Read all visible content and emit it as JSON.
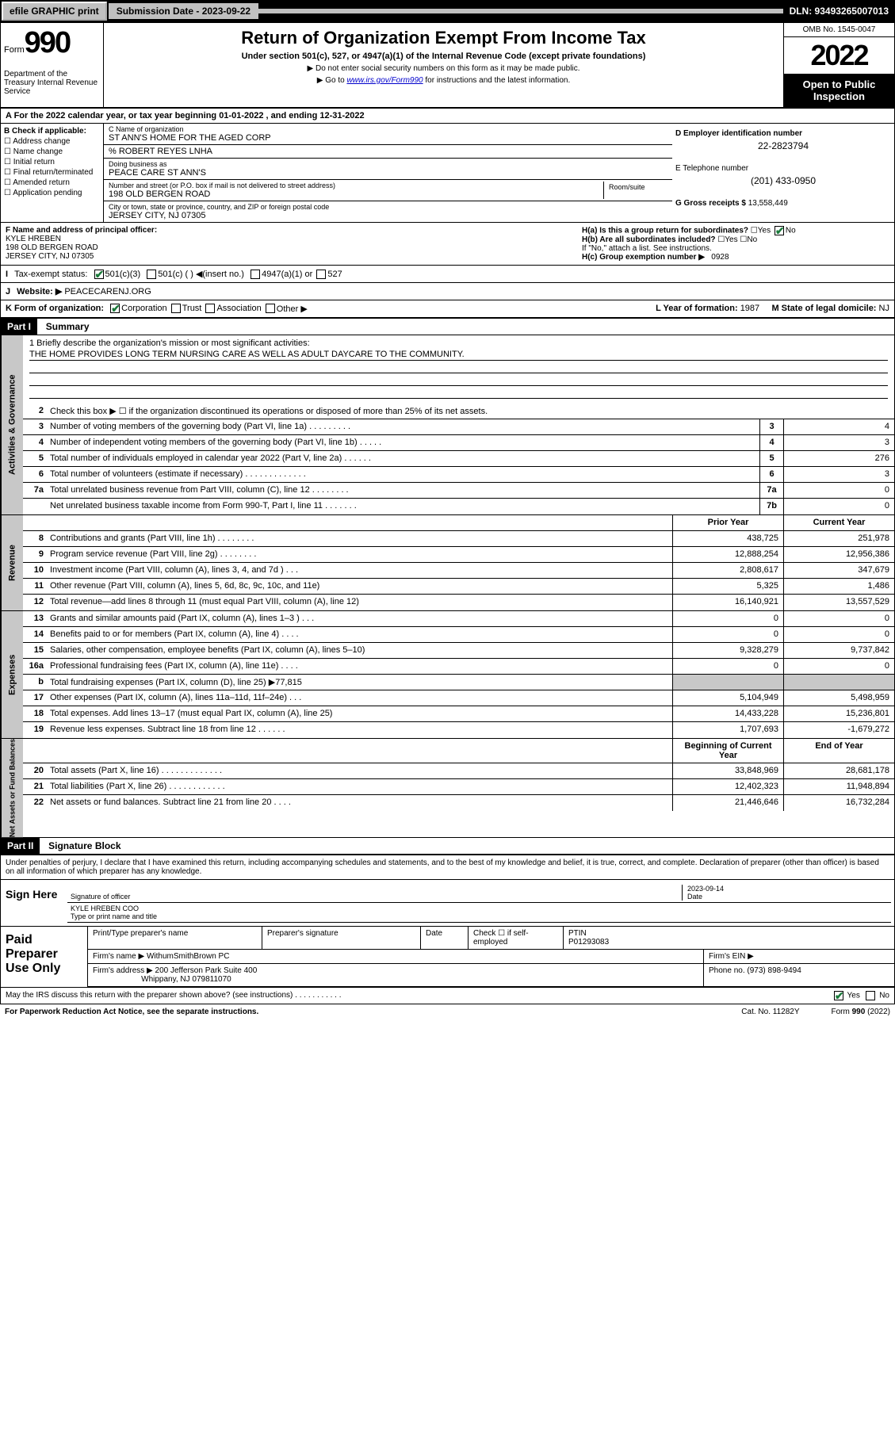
{
  "topbar": {
    "efile": "efile GRAPHIC print",
    "subdate_lbl": "Submission Date - 2023-09-22",
    "dln": "DLN: 93493265007013"
  },
  "header": {
    "form_word": "Form",
    "form_num": "990",
    "dept": "Department of the Treasury Internal Revenue Service",
    "title": "Return of Organization Exempt From Income Tax",
    "subtitle": "Under section 501(c), 527, or 4947(a)(1) of the Internal Revenue Code (except private foundations)",
    "note1": "▶ Do not enter social security numbers on this form as it may be made public.",
    "note2_pre": "▶ Go to ",
    "note2_link": "www.irs.gov/Form990",
    "note2_post": " for instructions and the latest information.",
    "omb": "OMB No. 1545-0047",
    "year": "2022",
    "otp": "Open to Public Inspection"
  },
  "rowA": "A For the 2022 calendar year, or tax year beginning 01-01-2022    , and ending 12-31-2022",
  "colB": {
    "lbl": "B Check if applicable:",
    "opts": [
      "Address change",
      "Name change",
      "Initial return",
      "Final return/terminated",
      "Amended return",
      "Application pending"
    ]
  },
  "colC": {
    "name_lbl": "C Name of organization",
    "name": "ST ANN'S HOME FOR THE AGED CORP",
    "care_lbl": "% ROBERT REYES LNHA",
    "dba_lbl": "Doing business as",
    "dba": "PEACE CARE ST ANN'S",
    "addr_lbl": "Number and street (or P.O. box if mail is not delivered to street address)",
    "room_lbl": "Room/suite",
    "addr": "198 OLD BERGEN ROAD",
    "city_lbl": "City or town, state or province, country, and ZIP or foreign postal code",
    "city": "JERSEY CITY, NJ  07305"
  },
  "colD": {
    "ein_lbl": "D Employer identification number",
    "ein": "22-2823794",
    "phone_lbl": "E Telephone number",
    "phone": "(201) 433-0950",
    "gross_lbl": "G Gross receipts $",
    "gross": "13,558,449"
  },
  "rowF": {
    "lbl": "F Name and address of principal officer:",
    "name": "KYLE HREBEN",
    "addr1": "198 OLD BERGEN ROAD",
    "addr2": "JERSEY CITY, NJ  07305"
  },
  "rowH": {
    "ha": "H(a)  Is this a group return for subordinates?",
    "ha_ans": "No",
    "hb": "H(b)  Are all subordinates included?",
    "hb_note": "If \"No,\" attach a list. See instructions.",
    "hc": "H(c)  Group exemption number ▶",
    "hc_val": "0928"
  },
  "rowI": {
    "lbl": "Tax-exempt status:",
    "opts": [
      "501(c)(3)",
      "501(c) (  ) ◀(insert no.)",
      "4947(a)(1) or",
      "527"
    ]
  },
  "rowJ": {
    "lbl": "Website: ▶",
    "val": "PEACECARENJ.ORG"
  },
  "rowK": {
    "lbl": "K Form of organization:",
    "opts": [
      "Corporation",
      "Trust",
      "Association",
      "Other ▶"
    ],
    "l_lbl": "L Year of formation:",
    "l_val": "1987",
    "m_lbl": "M State of legal domicile:",
    "m_val": "NJ"
  },
  "part1": {
    "hdr": "Part I",
    "title": "Summary",
    "mission_lbl": "1   Briefly describe the organization's mission or most significant activities:",
    "mission": "THE HOME PROVIDES LONG TERM NURSING CARE AS WELL AS ADULT DAYCARE TO THE COMMUNITY.",
    "line2": "Check this box ▶ ☐  if the organization discontinued its operations or disposed of more than 25% of its net assets.",
    "vtab1": "Activities & Governance",
    "vtab2": "Revenue",
    "vtab3": "Expenses",
    "vtab4": "Net Assets or Fund Balances",
    "col_prior": "Prior Year",
    "col_current": "Current Year",
    "col_beg": "Beginning of Current Year",
    "col_end": "End of Year",
    "gov_lines": [
      {
        "n": "3",
        "d": "Number of voting members of the governing body (Part VI, line 1a)   .     .     .     .     .     .     .     .     .",
        "b": "3",
        "v": "4"
      },
      {
        "n": "4",
        "d": "Number of independent voting members of the governing body (Part VI, line 1b)  .     .     .     .     .",
        "b": "4",
        "v": "3"
      },
      {
        "n": "5",
        "d": "Total number of individuals employed in calendar year 2022 (Part V, line 2a)  .     .     .     .     .     .",
        "b": "5",
        "v": "276"
      },
      {
        "n": "6",
        "d": "Total number of volunteers (estimate if necessary)  .     .     .     .     .     .     .     .     .     .     .     .     .",
        "b": "6",
        "v": "3"
      },
      {
        "n": "7a",
        "d": "Total unrelated business revenue from Part VIII, column (C), line 12  .     .     .     .     .     .     .     .",
        "b": "7a",
        "v": "0"
      },
      {
        "n": "",
        "d": "Net unrelated business taxable income from Form 990-T, Part I, line 11  .     .     .     .     .     .     .",
        "b": "7b",
        "v": "0"
      }
    ],
    "rev_lines": [
      {
        "n": "8",
        "d": "Contributions and grants (Part VIII, line 1h)  .     .     .     .     .     .     .     .",
        "p": "438,725",
        "c": "251,978"
      },
      {
        "n": "9",
        "d": "Program service revenue (Part VIII, line 2g)  .     .     .     .     .     .     .     .",
        "p": "12,888,254",
        "c": "12,956,386"
      },
      {
        "n": "10",
        "d": "Investment income (Part VIII, column (A), lines 3, 4, and 7d )  .     .     .",
        "p": "2,808,617",
        "c": "347,679"
      },
      {
        "n": "11",
        "d": "Other revenue (Part VIII, column (A), lines 5, 6d, 8c, 9c, 10c, and 11e)",
        "p": "5,325",
        "c": "1,486"
      },
      {
        "n": "12",
        "d": "Total revenue—add lines 8 through 11 (must equal Part VIII, column (A), line 12)",
        "p": "16,140,921",
        "c": "13,557,529"
      }
    ],
    "exp_lines": [
      {
        "n": "13",
        "d": "Grants and similar amounts paid (Part IX, column (A), lines 1–3 )  .     .     .",
        "p": "0",
        "c": "0"
      },
      {
        "n": "14",
        "d": "Benefits paid to or for members (Part IX, column (A), line 4)  .     .     .     .",
        "p": "0",
        "c": "0"
      },
      {
        "n": "15",
        "d": "Salaries, other compensation, employee benefits (Part IX, column (A), lines 5–10)",
        "p": "9,328,279",
        "c": "9,737,842"
      },
      {
        "n": "16a",
        "d": "Professional fundraising fees (Part IX, column (A), line 11e)  .     .     .     .",
        "p": "0",
        "c": "0"
      },
      {
        "n": "b",
        "d": "Total fundraising expenses (Part IX, column (D), line 25) ▶77,815",
        "p": "",
        "c": "",
        "shade": true
      },
      {
        "n": "17",
        "d": "Other expenses (Part IX, column (A), lines 11a–11d, 11f–24e)  .     .     .",
        "p": "5,104,949",
        "c": "5,498,959"
      },
      {
        "n": "18",
        "d": "Total expenses. Add lines 13–17 (must equal Part IX, column (A), line 25)",
        "p": "14,433,228",
        "c": "15,236,801"
      },
      {
        "n": "19",
        "d": "Revenue less expenses. Subtract line 18 from line 12  .     .     .     .     .     .",
        "p": "1,707,693",
        "c": "-1,679,272"
      }
    ],
    "net_lines": [
      {
        "n": "20",
        "d": "Total assets (Part X, line 16)  .     .     .     .     .     .     .     .     .     .     .     .     .",
        "p": "33,848,969",
        "c": "28,681,178"
      },
      {
        "n": "21",
        "d": "Total liabilities (Part X, line 26)  .     .     .     .     .     .     .     .     .     .     .     .",
        "p": "12,402,323",
        "c": "11,948,894"
      },
      {
        "n": "22",
        "d": "Net assets or fund balances. Subtract line 21 from line 20  .     .     .     .",
        "p": "21,446,646",
        "c": "16,732,284"
      }
    ]
  },
  "part2": {
    "hdr": "Part II",
    "title": "Signature Block",
    "decl": "Under penalties of perjury, I declare that I have examined this return, including accompanying schedules and statements, and to the best of my knowledge and belief, it is true, correct, and complete. Declaration of preparer (other than officer) is based on all information of which preparer has any knowledge.",
    "sign_here": "Sign Here",
    "sig_officer_lbl": "Signature of officer",
    "sig_date": "2023-09-14",
    "sig_date_lbl": "Date",
    "sig_name": "KYLE HREBEN  COO",
    "sig_name_lbl": "Type or print name and title",
    "paid_lbl": "Paid Preparer Use Only",
    "prep_name_lbl": "Print/Type preparer's name",
    "prep_sig_lbl": "Preparer's signature",
    "prep_date_lbl": "Date",
    "prep_check": "Check ☐ if self-employed",
    "ptin_lbl": "PTIN",
    "ptin": "P01293083",
    "firm_name_lbl": "Firm's name    ▶",
    "firm_name": "WithumSmithBrown PC",
    "firm_ein_lbl": "Firm's EIN ▶",
    "firm_addr_lbl": "Firm's address ▶",
    "firm_addr1": "200 Jefferson Park Suite 400",
    "firm_addr2": "Whippany, NJ  079811070",
    "firm_phone_lbl": "Phone no.",
    "firm_phone": "(973) 898-9494",
    "discuss": "May the IRS discuss this return with the preparer shown above? (see instructions)   .     .     .     .     .     .     .     .     .     .     .",
    "discuss_yes": "Yes",
    "discuss_no": "No"
  },
  "footer": {
    "pra": "For Paperwork Reduction Act Notice, see the separate instructions.",
    "cat": "Cat. No. 11282Y",
    "form": "Form 990 (2022)"
  }
}
